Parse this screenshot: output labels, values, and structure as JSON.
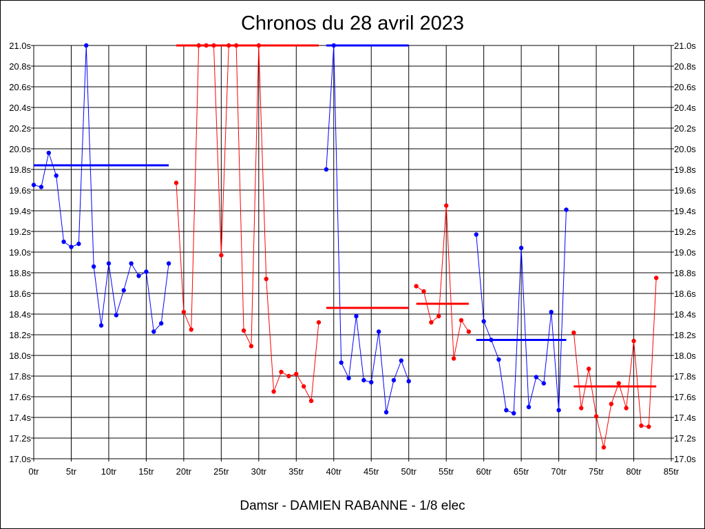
{
  "chart_data": {
    "type": "line",
    "title": "Chronos du 28 avril 2023",
    "footer": "Damsr - DAMIEN RABANNE - 1/8 elec",
    "xlim": [
      0,
      85
    ],
    "ylim": [
      17.0,
      21.0
    ],
    "x_ticks": [
      0,
      5,
      10,
      15,
      20,
      25,
      30,
      35,
      40,
      45,
      50,
      55,
      60,
      65,
      70,
      75,
      80,
      85
    ],
    "x_tick_labels": [
      "0tr",
      "5tr",
      "10tr",
      "15tr",
      "20tr",
      "25tr",
      "30tr",
      "35tr",
      "40tr",
      "45tr",
      "50tr",
      "55tr",
      "60tr",
      "65tr",
      "70tr",
      "75tr",
      "80tr",
      "85tr"
    ],
    "y_ticks": [
      17.0,
      17.2,
      17.4,
      17.6,
      17.8,
      18.0,
      18.2,
      18.4,
      18.6,
      18.8,
      19.0,
      19.2,
      19.4,
      19.6,
      19.8,
      20.0,
      20.2,
      20.4,
      20.6,
      20.8,
      21.0
    ],
    "y_tick_labels": [
      "17.0s",
      "17.2s",
      "17.4s",
      "17.6s",
      "17.8s",
      "18.0s",
      "18.2s",
      "18.4s",
      "18.6s",
      "18.8s",
      "19.0s",
      "19.2s",
      "19.4s",
      "19.6s",
      "19.8s",
      "20.0s",
      "20.2s",
      "20.4s",
      "20.6s",
      "20.8s",
      "21.0s"
    ],
    "grid": true,
    "colors": {
      "blue": "#0000ff",
      "red": "#ff0000"
    },
    "series": [
      {
        "color": "blue",
        "points": [
          [
            0,
            19.65
          ],
          [
            1,
            19.63
          ],
          [
            2,
            19.96
          ],
          [
            3,
            19.74
          ],
          [
            4,
            19.1
          ],
          [
            5,
            19.05
          ],
          [
            6,
            19.08
          ],
          [
            7,
            21.0
          ],
          [
            8,
            18.86
          ],
          [
            9,
            18.29
          ],
          [
            10,
            18.89
          ],
          [
            11,
            18.39
          ],
          [
            12,
            18.63
          ],
          [
            13,
            18.89
          ],
          [
            14,
            18.77
          ],
          [
            15,
            18.81
          ],
          [
            16,
            18.23
          ],
          [
            17,
            18.31
          ],
          [
            18,
            18.89
          ]
        ],
        "average": {
          "x": [
            0,
            18
          ],
          "y": 19.84
        }
      },
      {
        "color": "red",
        "points": [
          [
            19,
            19.67
          ],
          [
            20,
            18.42
          ],
          [
            21,
            18.25
          ],
          [
            22,
            21.0
          ],
          [
            23,
            21.0
          ],
          [
            24,
            21.0
          ],
          [
            25,
            18.97
          ],
          [
            26,
            21.0
          ],
          [
            27,
            21.0
          ],
          [
            28,
            18.24
          ],
          [
            29,
            18.09
          ],
          [
            30,
            21.0
          ],
          [
            31,
            18.74
          ],
          [
            32,
            17.65
          ],
          [
            33,
            17.84
          ],
          [
            34,
            17.8
          ],
          [
            35,
            17.82
          ],
          [
            36,
            17.7
          ],
          [
            37,
            17.56
          ],
          [
            38,
            18.32
          ]
        ],
        "average": {
          "x": [
            19,
            38
          ],
          "y": 21.0
        }
      },
      {
        "color": "blue",
        "points": [
          [
            39,
            19.8
          ],
          [
            40,
            21.0
          ],
          [
            41,
            17.93
          ],
          [
            42,
            17.78
          ],
          [
            43,
            18.38
          ],
          [
            44,
            17.76
          ],
          [
            45,
            17.74
          ],
          [
            46,
            18.23
          ],
          [
            47,
            17.45
          ],
          [
            48,
            17.76
          ],
          [
            49,
            17.95
          ],
          [
            50,
            17.75
          ]
        ],
        "average": {
          "x": [
            39,
            50
          ],
          "y": 21.0
        }
      },
      {
        "color": "red",
        "points": [],
        "average": {
          "x": [
            39,
            50
          ],
          "y": 18.46
        }
      },
      {
        "color": "red",
        "points": [
          [
            51,
            18.67
          ],
          [
            52,
            18.62
          ],
          [
            53,
            18.32
          ],
          [
            54,
            18.38
          ],
          [
            55,
            19.45
          ],
          [
            56,
            17.97
          ],
          [
            57,
            18.34
          ],
          [
            58,
            18.23
          ]
        ],
        "average": {
          "x": [
            51,
            58
          ],
          "y": 18.5
        }
      },
      {
        "color": "blue",
        "points": [
          [
            59,
            19.17
          ],
          [
            60,
            18.33
          ],
          [
            61,
            18.15
          ],
          [
            62,
            17.96
          ],
          [
            63,
            17.47
          ],
          [
            64,
            17.44
          ],
          [
            65,
            19.04
          ],
          [
            66,
            17.5
          ],
          [
            67,
            17.79
          ],
          [
            68,
            17.73
          ],
          [
            69,
            18.42
          ],
          [
            70,
            17.47
          ],
          [
            71,
            19.41
          ]
        ],
        "average": {
          "x": [
            59,
            71
          ],
          "y": 18.15
        }
      },
      {
        "color": "red",
        "points": [
          [
            72,
            18.22
          ],
          [
            73,
            17.49
          ],
          [
            74,
            17.87
          ],
          [
            75,
            17.41
          ],
          [
            76,
            17.11
          ],
          [
            77,
            17.53
          ],
          [
            78,
            17.73
          ],
          [
            79,
            17.49
          ],
          [
            80,
            18.14
          ],
          [
            81,
            17.32
          ],
          [
            82,
            17.31
          ],
          [
            83,
            18.75
          ]
        ],
        "average": {
          "x": [
            72,
            83
          ],
          "y": 17.7
        }
      }
    ]
  }
}
